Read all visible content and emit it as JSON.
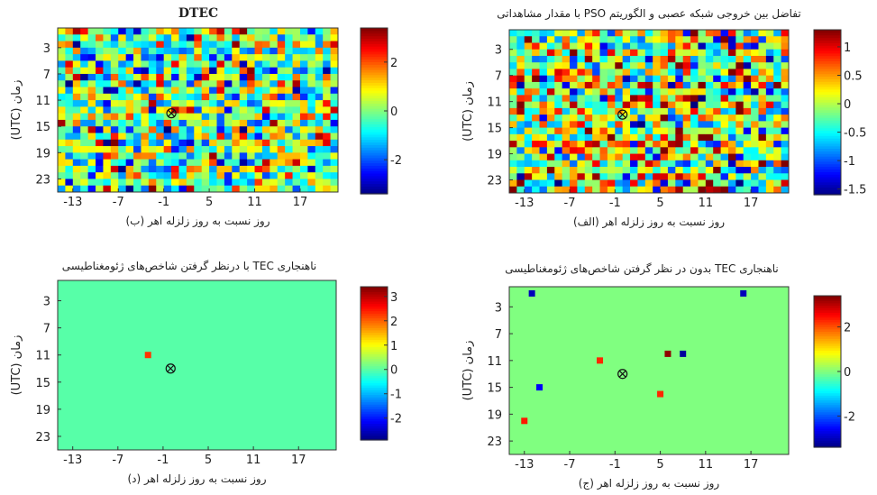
{
  "chart_data": [
    {
      "id": "b",
      "type": "heatmap",
      "title": "DTEC",
      "xlabel": "روز نسبت به روز زلزله اهر (ب)",
      "ylabel": "(UTC) زمان",
      "xticks": [
        "-13",
        "-7",
        "-1",
        "5",
        "11",
        "17"
      ],
      "yticks": [
        "3",
        "7",
        "11",
        "15",
        "19",
        "23"
      ],
      "colorbar_ticks": [
        "2",
        "0",
        "-2"
      ],
      "colorbar_range": [
        -3.4,
        3.4
      ],
      "xlim": [
        -15,
        22
      ],
      "ylim": [
        0,
        25
      ],
      "grid_cols": 37,
      "grid_rows": 25,
      "field": "random noise",
      "seed": 7,
      "amplitude": 2.8,
      "epicenter_marker": {
        "day": 0,
        "hour": 13
      },
      "values": []
    },
    {
      "id": "alef",
      "type": "heatmap",
      "title": "تفاضل بین خروجی شبکه عصبی و الگوریتم PSO با مقدار مشاهداتی",
      "xlabel": "روز نسبت به روز زلزله اهر (الف)",
      "ylabel": "(UTC) زمان",
      "xticks": [
        "-13",
        "-7",
        "-1",
        "5",
        "11",
        "17"
      ],
      "yticks": [
        "3",
        "7",
        "11",
        "15",
        "19",
        "23"
      ],
      "colorbar_ticks": [
        "1",
        "0.5",
        "0",
        "-0.5",
        "-1",
        "-1.5"
      ],
      "colorbar_range": [
        -1.6,
        1.3
      ],
      "xlim": [
        -15,
        22
      ],
      "ylim": [
        0,
        25
      ],
      "grid_cols": 37,
      "grid_rows": 25,
      "field": "random noise",
      "seed": 19,
      "amplitude": 1.3,
      "epicenter_marker": {
        "day": 0,
        "hour": 13
      },
      "values": []
    },
    {
      "id": "d",
      "type": "heatmap",
      "title": "ناهنجاری TEC با درنظر گرفتن شاخص‌های ژئومغناطیسی",
      "xlabel": "روز نسبت به روز زلزله اهر (د)",
      "ylabel": "(UTC) زمان",
      "xticks": [
        "-13",
        "-7",
        "-1",
        "5",
        "11",
        "17"
      ],
      "yticks": [
        "3",
        "7",
        "11",
        "15",
        "19",
        "23"
      ],
      "colorbar_ticks": [
        "3",
        "2",
        "1",
        "0",
        "-1",
        "-2"
      ],
      "colorbar_range": [
        -2.9,
        3.4
      ],
      "xlim": [
        -15,
        22
      ],
      "ylim": [
        0,
        25
      ],
      "grid_cols": 37,
      "grid_rows": 25,
      "background_value": 0,
      "anomalies": [
        {
          "day": -3,
          "hour": 11,
          "value": 2.3
        }
      ],
      "epicenter_marker": {
        "day": 0,
        "hour": 13
      }
    },
    {
      "id": "j",
      "type": "heatmap",
      "title": "ناهنجاری TEC بدون در نظر گرفتن شاخص‌های ژئومغناطیسی",
      "xlabel": "روز نسبت به روز زلزله اهر (ج)",
      "ylabel": "(UTC) زمان",
      "xticks": [
        "-13",
        "-7",
        "-1",
        "5",
        "11",
        "17"
      ],
      "yticks": [
        "3",
        "7",
        "11",
        "15",
        "19",
        "23"
      ],
      "colorbar_ticks": [
        "2",
        "0",
        "-2"
      ],
      "colorbar_range": [
        -3.4,
        3.4
      ],
      "xlim": [
        -15,
        22
      ],
      "ylim": [
        0,
        25
      ],
      "grid_cols": 37,
      "grid_rows": 25,
      "background_value": 0,
      "anomalies": [
        {
          "day": -12,
          "hour": 1,
          "value": -3.0
        },
        {
          "day": 16,
          "hour": 1,
          "value": -3.0
        },
        {
          "day": -11,
          "hour": 15,
          "value": -2.6
        },
        {
          "day": -13,
          "hour": 20,
          "value": 2.4
        },
        {
          "day": -3,
          "hour": 11,
          "value": 2.3
        },
        {
          "day": 5,
          "hour": 16,
          "value": 2.3
        },
        {
          "day": 6,
          "hour": 10,
          "value": 3.3
        },
        {
          "day": 8,
          "hour": 10,
          "value": -3.2
        }
      ],
      "epicenter_marker": {
        "day": 0,
        "hour": 13
      }
    }
  ]
}
